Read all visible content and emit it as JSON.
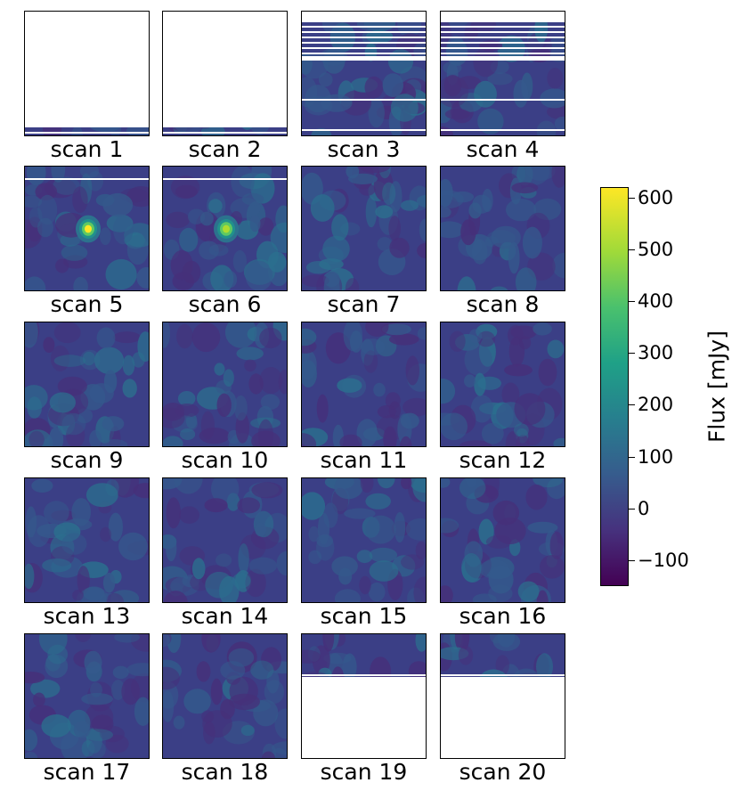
{
  "chart_data": {
    "type": "heatmap",
    "layout": "small-multiples grid, 5 rows x 4 columns",
    "colormap": "viridis",
    "panels": [
      {
        "label": "scan 1",
        "coverage": "partial-bottom-strip"
      },
      {
        "label": "scan 2",
        "coverage": "partial-bottom-strip"
      },
      {
        "label": "scan 3",
        "coverage": "striped-top"
      },
      {
        "label": "scan 4",
        "coverage": "striped-top"
      },
      {
        "label": "scan 5",
        "coverage": "full",
        "source": "bright point source",
        "peak_mjy": 600
      },
      {
        "label": "scan 6",
        "coverage": "full",
        "source": "bright point source",
        "peak_mjy": 560
      },
      {
        "label": "scan 7",
        "coverage": "full"
      },
      {
        "label": "scan 8",
        "coverage": "full"
      },
      {
        "label": "scan 9",
        "coverage": "full"
      },
      {
        "label": "scan 10",
        "coverage": "full"
      },
      {
        "label": "scan 11",
        "coverage": "full"
      },
      {
        "label": "scan 12",
        "coverage": "full"
      },
      {
        "label": "scan 13",
        "coverage": "full"
      },
      {
        "label": "scan 14",
        "coverage": "full"
      },
      {
        "label": "scan 15",
        "coverage": "full"
      },
      {
        "label": "scan 16",
        "coverage": "full"
      },
      {
        "label": "scan 17",
        "coverage": "full"
      },
      {
        "label": "scan 18",
        "coverage": "full"
      },
      {
        "label": "scan 19",
        "coverage": "partial-top"
      },
      {
        "label": "scan 20",
        "coverage": "partial-top"
      }
    ],
    "colorbar": {
      "label": "Flux [mJy]",
      "range": [
        -150,
        620
      ],
      "ticks": [
        600,
        500,
        400,
        300,
        200,
        100,
        0,
        -100
      ],
      "tick_labels": [
        "600",
        "500",
        "400",
        "300",
        "200",
        "100",
        "0",
        "−100"
      ]
    }
  }
}
